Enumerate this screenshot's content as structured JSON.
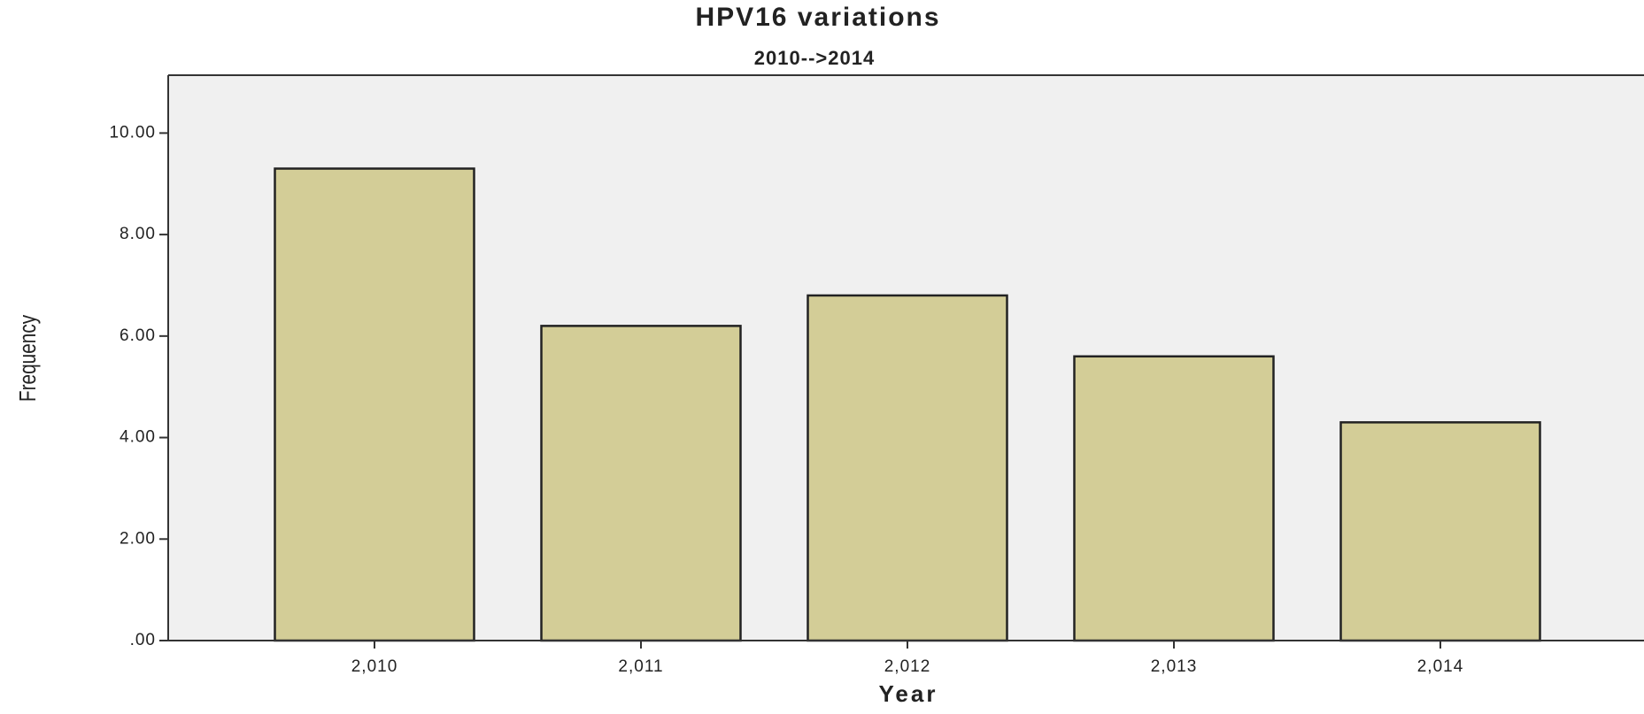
{
  "chart_data": {
    "type": "bar",
    "title": "HPV16 variations",
    "subtitle": "2010-->2014",
    "x_label": "Year",
    "y_label": "Frequency",
    "categories": [
      "2,010",
      "2,011",
      "2,012",
      "2,013",
      "2,014"
    ],
    "values": [
      9.3,
      6.2,
      6.8,
      5.6,
      4.3
    ],
    "color": "#d3cd97",
    "ylim": [
      0,
      11.14
    ],
    "yticks": [
      {
        "value": 0,
        "label": ".00"
      },
      {
        "value": 2,
        "label": "2.00"
      },
      {
        "value": 4,
        "label": "4.00"
      },
      {
        "value": 6,
        "label": "6.00"
      },
      {
        "value": 8,
        "label": "8.00"
      },
      {
        "value": 10,
        "label": "10.00"
      }
    ],
    "grid": false
  }
}
